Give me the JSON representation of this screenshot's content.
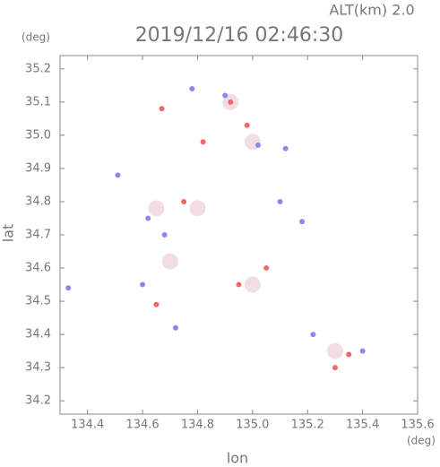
{
  "chart_data": {
    "type": "scatter",
    "title": "2019/12/16 02:46:30",
    "subtitle": "ALT(km) 2.0",
    "x_label": "lon",
    "x_unit": "(deg)",
    "y_label": "lat",
    "y_unit": "(deg)",
    "xlim": [
      134.3,
      135.6
    ],
    "ylim": [
      34.16,
      35.24
    ],
    "xticks": [
      134.4,
      134.6,
      134.8,
      {
        "value": 135,
        "label": "135.0"
      },
      135.2,
      135.4,
      135.6
    ],
    "yticks": [
      34.2,
      34.3,
      34.4,
      34.5,
      34.6,
      34.7,
      34.8,
      34.9,
      {
        "value": 35,
        "label": "35.0"
      },
      35.1,
      35.2
    ],
    "series": [
      {
        "color": "#f2dde4",
        "size": 9,
        "x": [
          134.8,
          135.0,
          135.3,
          135.0,
          134.65,
          134.92,
          134.7
        ],
        "y": [
          34.78,
          34.98,
          34.35,
          34.55,
          34.78,
          35.1,
          34.62
        ]
      },
      {
        "color": "#8a8aee",
        "size": 3,
        "x": [
          134.33,
          134.51,
          134.6,
          134.68,
          134.9,
          135.02,
          135.12,
          135.1,
          135.22,
          135.4,
          134.62,
          134.72,
          135.18,
          134.78
        ],
        "y": [
          34.54,
          34.88,
          34.55,
          34.7,
          35.12,
          34.97,
          34.96,
          34.8,
          34.4,
          34.35,
          34.75,
          34.42,
          34.74,
          35.14
        ]
      },
      {
        "color": "#ee6a6a",
        "size": 3,
        "x": [
          134.67,
          134.65,
          134.92,
          135.35,
          134.75,
          134.95,
          135.3,
          134.82,
          134.98,
          135.05
        ],
        "y": [
          35.08,
          34.49,
          35.1,
          34.34,
          34.8,
          34.55,
          34.3,
          34.98,
          35.03,
          34.6
        ]
      }
    ]
  }
}
